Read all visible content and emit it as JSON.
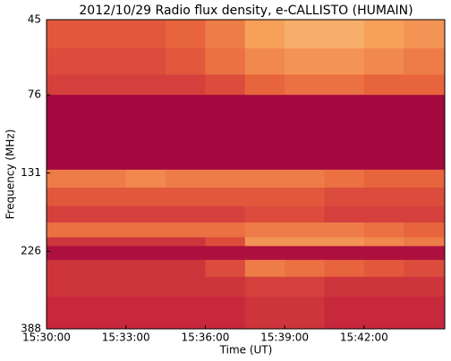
{
  "chart_data": {
    "type": "heatmap",
    "title": "2012/10/29  Radio flux density, e-CALLISTO (HUMAIN)",
    "xlabel": "Time (UT)",
    "ylabel": "Frequency (MHz)",
    "xlim": [
      "15:30:00",
      "15:45:03"
    ],
    "xticks": [
      "15:30:00",
      "15:33:00",
      "15:36:00",
      "15:39:00",
      "15:42:00"
    ],
    "ylim": [
      45,
      388
    ],
    "yticks": [
      45,
      76,
      131,
      226,
      388
    ],
    "yscale": "log",
    "yinvert": true,
    "x_bins": [
      "15:30:00",
      "15:31:30",
      "15:33:00",
      "15:34:30",
      "15:36:00",
      "15:37:30",
      "15:39:00",
      "15:40:30",
      "15:42:00",
      "15:43:30",
      "15:45:03"
    ],
    "y_bins": [
      45,
      55,
      66,
      76,
      128,
      145,
      165,
      185,
      205,
      218,
      240,
      270,
      310,
      388
    ],
    "zlim": [
      0,
      1
    ],
    "colormap": [
      "#9b0040",
      "#c8283c",
      "#e8643c",
      "#f7a05a",
      "#fde6b0"
    ],
    "z": [
      [
        0.45,
        0.45,
        0.45,
        0.5,
        0.6,
        0.75,
        0.8,
        0.8,
        0.75,
        0.7
      ],
      [
        0.4,
        0.4,
        0.4,
        0.45,
        0.55,
        0.65,
        0.7,
        0.7,
        0.65,
        0.6
      ],
      [
        0.35,
        0.35,
        0.35,
        0.35,
        0.4,
        0.5,
        0.55,
        0.55,
        0.5,
        0.5
      ],
      [
        0.05,
        0.05,
        0.05,
        0.05,
        0.05,
        0.05,
        0.05,
        0.05,
        0.05,
        0.05
      ],
      [
        0.6,
        0.6,
        0.65,
        0.6,
        0.6,
        0.6,
        0.6,
        0.55,
        0.5,
        0.5
      ],
      [
        0.45,
        0.45,
        0.45,
        0.45,
        0.45,
        0.45,
        0.45,
        0.4,
        0.4,
        0.4
      ],
      [
        0.35,
        0.35,
        0.35,
        0.35,
        0.35,
        0.4,
        0.4,
        0.35,
        0.35,
        0.35
      ],
      [
        0.55,
        0.55,
        0.55,
        0.55,
        0.55,
        0.6,
        0.6,
        0.6,
        0.55,
        0.5
      ],
      [
        0.3,
        0.3,
        0.3,
        0.3,
        0.4,
        0.7,
        0.7,
        0.7,
        0.65,
        0.6
      ],
      [
        0.1,
        0.1,
        0.1,
        0.1,
        0.1,
        0.1,
        0.1,
        0.1,
        0.1,
        0.1
      ],
      [
        0.3,
        0.3,
        0.3,
        0.3,
        0.4,
        0.6,
        0.55,
        0.5,
        0.45,
        0.4
      ],
      [
        0.3,
        0.3,
        0.3,
        0.3,
        0.3,
        0.35,
        0.35,
        0.3,
        0.3,
        0.3
      ],
      [
        0.25,
        0.25,
        0.25,
        0.25,
        0.25,
        0.3,
        0.3,
        0.25,
        0.25,
        0.25
      ]
    ]
  }
}
